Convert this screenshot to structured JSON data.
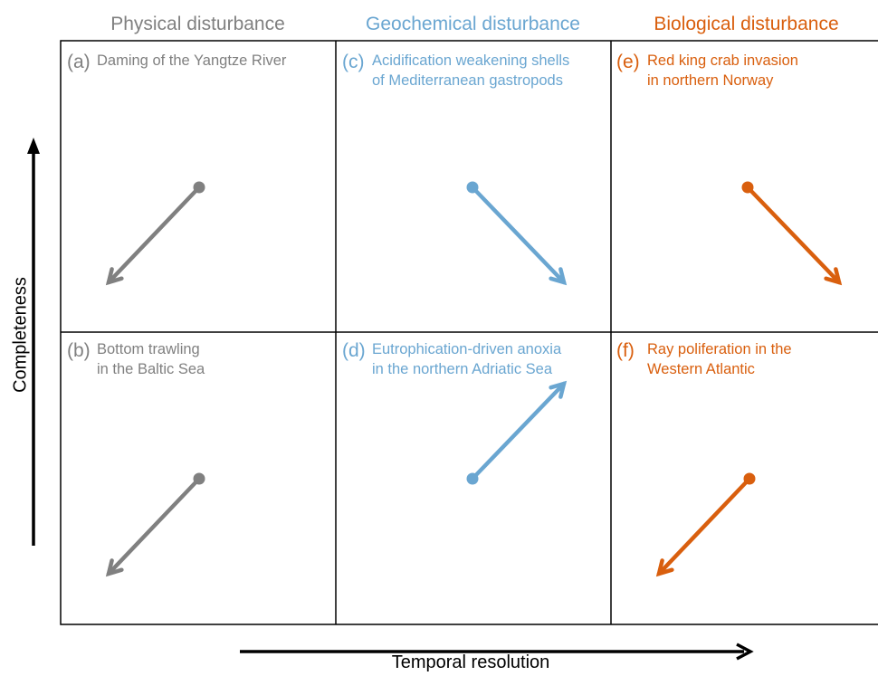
{
  "colors": {
    "physical": "#808080",
    "geochemical": "#6aa6d1",
    "biological": "#d95f0e",
    "frame": "#000000"
  },
  "axes": {
    "y_label": "Completeness",
    "x_label": "Temporal resolution"
  },
  "columns": [
    {
      "label": "Physical disturbance",
      "color_key": "physical"
    },
    {
      "label": "Geochemical disturbance",
      "color_key": "geochemical"
    },
    {
      "label": "Biological disturbance",
      "color_key": "biological"
    }
  ],
  "panels": [
    {
      "tag": "(a)",
      "text": "Daming of the Yangtze River",
      "direction": "down-left",
      "color_key": "physical"
    },
    {
      "tag": "(b)",
      "text": "Bottom trawling\nin the Baltic Sea",
      "direction": "down-left",
      "color_key": "physical"
    },
    {
      "tag": "(c)",
      "text": "Acidification weakening shells\nof Mediterranean gastropods",
      "direction": "down-right",
      "color_key": "geochemical"
    },
    {
      "tag": "(d)",
      "text": "Eutrophication-driven anoxia\nin the northern Adriatic Sea",
      "direction": "up-right",
      "color_key": "geochemical"
    },
    {
      "tag": "(e)",
      "text": "Red king crab invasion\nin northern Norway",
      "direction": "down-right",
      "color_key": "biological"
    },
    {
      "tag": "(f)",
      "text": "Ray poliferation in the\nWestern Atlantic",
      "direction": "down-left",
      "color_key": "biological"
    }
  ]
}
